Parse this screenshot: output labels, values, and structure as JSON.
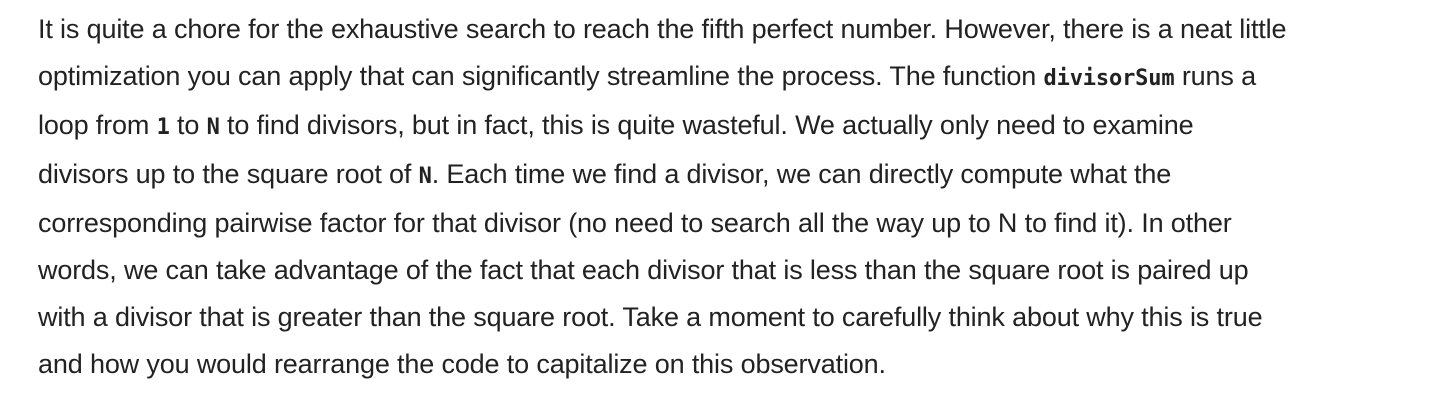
{
  "paragraph": {
    "l1": "It is quite a chore for the exhaustive search to reach the fifth perfect number. However, there is a neat little",
    "l2a": "optimization you can apply that can significantly streamline the process. The function ",
    "l2code": "divisorSum",
    "l2b": " runs a",
    "l3a": "loop from ",
    "l3code1": "1",
    "l3b": " to ",
    "l3code2": "N",
    "l3c": " to find divisors, but in fact, this is quite wasteful. We actually only need to examine",
    "l4a": "divisors up to the square root of ",
    "l4code": "N",
    "l4b": ". Each time we find a divisor, we can directly compute what the",
    "l5": "corresponding pairwise factor for that divisor (no need to search all the way up to N to find it). In other",
    "l6": "words, we can take advantage of the fact that each divisor that is less than the square root is paired up",
    "l7": "with a divisor that is greater than the square root. Take a moment to carefully think about why this is true",
    "l8": "and how you would rearrange the code to capitalize on this observation."
  }
}
